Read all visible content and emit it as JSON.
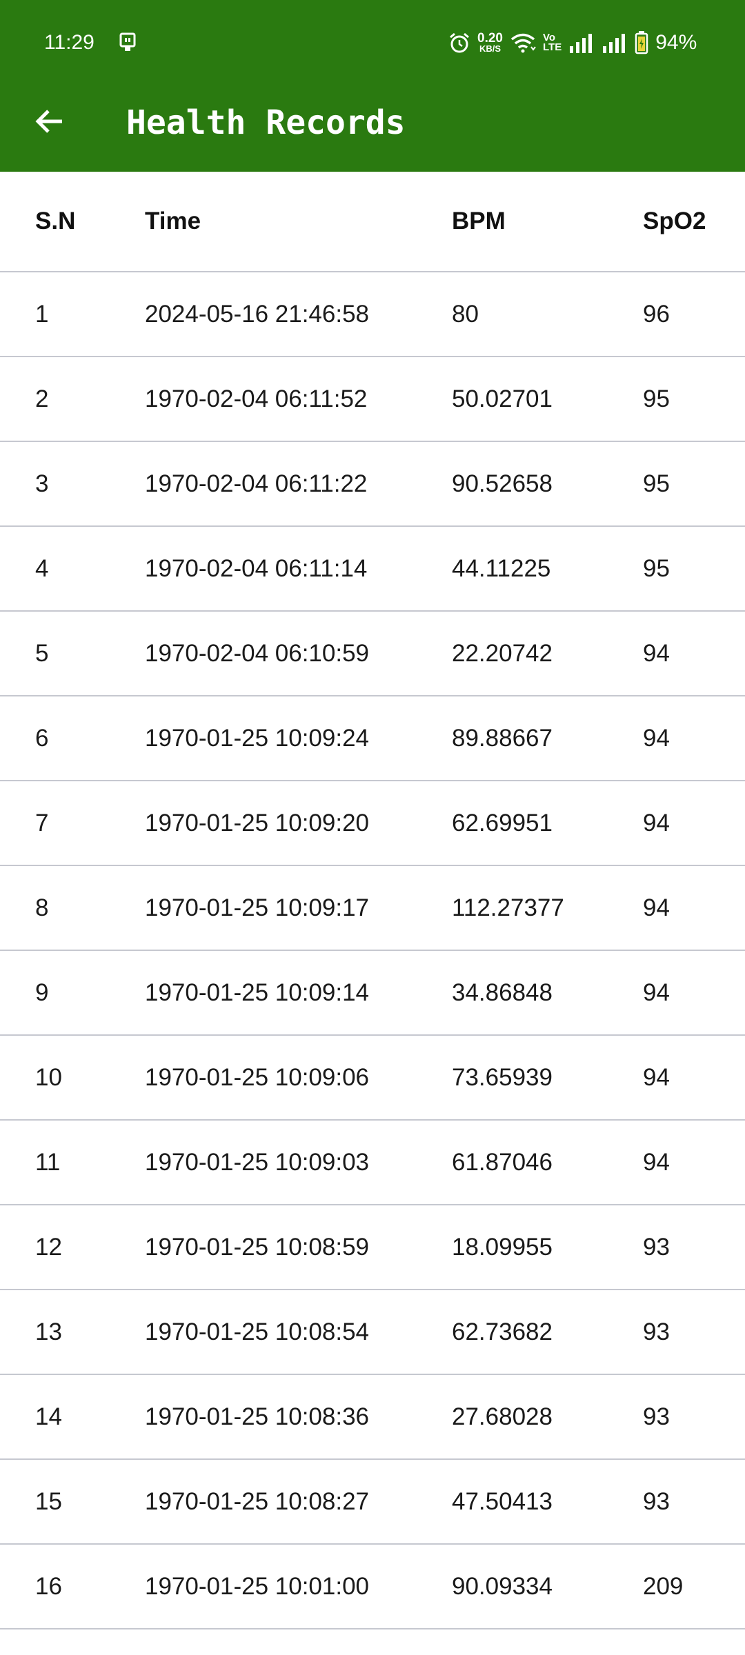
{
  "status_bar": {
    "time": "11:29",
    "net_speed_value": "0.20",
    "net_speed_unit": "KB/S",
    "volte_top": "Vo",
    "volte_bottom": "LTE",
    "battery_percent": "94%"
  },
  "header": {
    "title": "Health Records",
    "color": "#2a7a10"
  },
  "table": {
    "columns": [
      "S.N",
      "Time",
      "BPM",
      "SpO2"
    ],
    "rows": [
      [
        "1",
        "2024-05-16 21:46:58",
        "80",
        "96"
      ],
      [
        "2",
        "1970-02-04 06:11:52",
        "50.02701",
        "95"
      ],
      [
        "3",
        "1970-02-04 06:11:22",
        "90.52658",
        "95"
      ],
      [
        "4",
        "1970-02-04 06:11:14",
        "44.11225",
        "95"
      ],
      [
        "5",
        "1970-02-04 06:10:59",
        "22.20742",
        "94"
      ],
      [
        "6",
        "1970-01-25 10:09:24",
        "89.88667",
        "94"
      ],
      [
        "7",
        "1970-01-25 10:09:20",
        "62.69951",
        "94"
      ],
      [
        "8",
        "1970-01-25 10:09:17",
        "112.27377",
        "94"
      ],
      [
        "9",
        "1970-01-25 10:09:14",
        "34.86848",
        "94"
      ],
      [
        "10",
        "1970-01-25 10:09:06",
        "73.65939",
        "94"
      ],
      [
        "11",
        "1970-01-25 10:09:03",
        "61.87046",
        "94"
      ],
      [
        "12",
        "1970-01-25 10:08:59",
        "18.09955",
        "93"
      ],
      [
        "13",
        "1970-01-25 10:08:54",
        "62.73682",
        "93"
      ],
      [
        "14",
        "1970-01-25 10:08:36",
        "27.68028",
        "93"
      ],
      [
        "15",
        "1970-01-25 10:08:27",
        "47.50413",
        "93"
      ],
      [
        "16",
        "1970-01-25 10:01:00",
        "90.09334",
        "209"
      ]
    ]
  }
}
